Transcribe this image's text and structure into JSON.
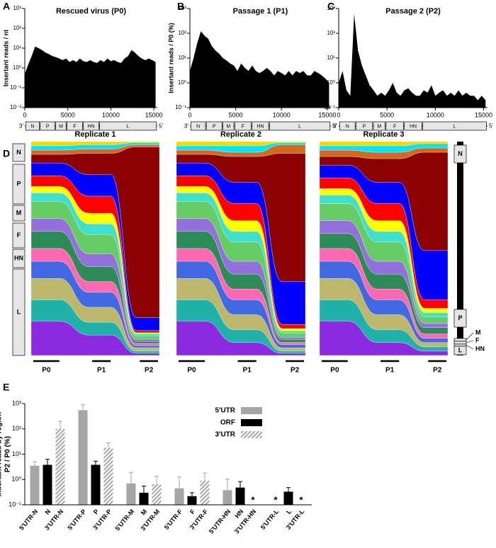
{
  "panels": [
    "A",
    "B",
    "C",
    "D",
    "E"
  ],
  "d_genome": {
    "left": [
      "N",
      "P",
      "M",
      "F",
      "HN",
      "L"
    ],
    "right": [
      "N",
      "P",
      "M",
      "F",
      "HN",
      "L"
    ]
  },
  "chart_data": [
    {
      "type": "area",
      "title": "Rescued virus (P0)",
      "ylabel": "Insertant reads / nt",
      "color": "#000000",
      "log_y": true,
      "x": [
        0,
        400,
        800,
        1200,
        1600,
        2000,
        2400,
        2800,
        3200,
        3600,
        4000,
        4400,
        4800,
        5200,
        5600,
        6000,
        6400,
        6800,
        7200,
        7600,
        8000,
        8400,
        8800,
        9200,
        9600,
        10000,
        10400,
        10800,
        11200,
        11600,
        12000,
        12400,
        12800,
        13200,
        13600,
        14000,
        14400,
        14800,
        15200
      ],
      "values": [
        0.5,
        1.5,
        4,
        12,
        10,
        8,
        6,
        5,
        4,
        3.5,
        3,
        2.5,
        3,
        2,
        2.5,
        2,
        3,
        2.2,
        2,
        2.5,
        2,
        1.8,
        2.5,
        2,
        3,
        2.2,
        2.5,
        2,
        1.8,
        3,
        4,
        8,
        6,
        4,
        3,
        2.5,
        3,
        2.5,
        2
      ],
      "xlim": [
        0,
        15400
      ],
      "xticks": [
        0,
        5000,
        10000,
        15000
      ],
      "ylim": [
        0.01,
        1000
      ],
      "yticks": [
        {
          "value": 0.01,
          "label": "10⁻²"
        },
        {
          "value": 0.1,
          "label": "10⁻¹"
        },
        {
          "value": 1,
          "label": "10⁰"
        },
        {
          "value": 10,
          "label": "10¹"
        },
        {
          "value": 100,
          "label": "10²"
        },
        {
          "value": 1000,
          "label": "10³"
        }
      ],
      "genome_ends": [
        "3'",
        "5'"
      ],
      "genes": [
        {
          "name": "N",
          "start": 100,
          "end": 1700
        },
        {
          "name": "P",
          "start": 1800,
          "end": 3500
        },
        {
          "name": "M",
          "start": 3600,
          "end": 4800
        },
        {
          "name": "F",
          "start": 4900,
          "end": 6700
        },
        {
          "name": "HN",
          "start": 6800,
          "end": 8600
        },
        {
          "name": "L",
          "start": 8700,
          "end": 15300
        }
      ]
    },
    {
      "type": "area",
      "title": "Passage 1 (P1)",
      "ylabel": "Insertant reads / P0 (%)",
      "color": "#000000",
      "log_y": true,
      "x": [
        0,
        400,
        800,
        1200,
        1600,
        2000,
        2400,
        2800,
        3200,
        3600,
        4000,
        4400,
        4800,
        5200,
        5600,
        6000,
        6400,
        6800,
        7200,
        7600,
        8000,
        8400,
        8800,
        9200,
        9600,
        10000,
        10400,
        10800,
        11200,
        11600,
        12000,
        12400,
        12800,
        13200,
        13600,
        14000,
        14400,
        14800,
        15200
      ],
      "values": [
        3,
        10,
        40,
        120,
        80,
        60,
        30,
        20,
        15,
        10,
        8,
        6,
        5,
        3,
        6,
        4,
        3,
        5,
        3,
        2.5,
        3,
        4,
        3,
        2,
        3,
        2.5,
        2,
        3,
        2,
        3,
        2.5,
        3,
        2,
        2,
        3,
        2.5,
        2,
        1.5,
        1
      ],
      "xlim": [
        0,
        15400
      ],
      "xticks": [
        0,
        5000,
        10000,
        15000
      ],
      "ylim": [
        0.1,
        1000
      ],
      "yticks": [
        {
          "value": 0.1,
          "label": "10⁻¹"
        },
        {
          "value": 1,
          "label": "10⁰"
        },
        {
          "value": 10,
          "label": "10¹"
        },
        {
          "value": 100,
          "label": "10²"
        },
        {
          "value": 1000,
          "label": "10³"
        }
      ],
      "genome_ends": [
        "3'",
        "5'"
      ],
      "genes": [
        {
          "name": "N",
          "start": 100,
          "end": 1700
        },
        {
          "name": "P",
          "start": 1800,
          "end": 3500
        },
        {
          "name": "M",
          "start": 3600,
          "end": 4800
        },
        {
          "name": "F",
          "start": 4900,
          "end": 6700
        },
        {
          "name": "HN",
          "start": 6800,
          "end": 8600
        },
        {
          "name": "L",
          "start": 8700,
          "end": 15300
        }
      ]
    },
    {
      "type": "area",
      "title": "Passage 2 (P2)",
      "color": "#000000",
      "log_y": true,
      "x": [
        0,
        400,
        800,
        1200,
        1600,
        2000,
        2400,
        2800,
        3200,
        3600,
        4000,
        4400,
        4800,
        5200,
        5600,
        6000,
        6400,
        6800,
        7200,
        7600,
        8000,
        8400,
        8800,
        9200,
        9600,
        10000,
        10400,
        10800,
        11200,
        11600,
        12000,
        12400,
        12800,
        13200,
        13600,
        14000,
        14400,
        14800,
        15200
      ],
      "values": [
        1,
        3,
        0.5,
        0.3,
        600,
        20,
        5,
        2,
        0.8,
        0.5,
        0.3,
        0.4,
        0.3,
        0.5,
        1,
        0.4,
        0.3,
        0.5,
        0.6,
        0.4,
        0.3,
        0.3,
        0.5,
        0.4,
        0.8,
        0.3,
        0.4,
        0.5,
        0.3,
        0.4,
        0.3,
        0.5,
        0.3,
        0.4,
        0.3,
        0.3,
        0.2,
        0.3,
        0.2
      ],
      "xlim": [
        0,
        15400
      ],
      "xticks": [
        0,
        5000,
        10000,
        15000
      ],
      "ylim": [
        0.1,
        1000
      ],
      "yticks": [
        {
          "value": 0.1,
          "label": "10⁻¹"
        },
        {
          "value": 1,
          "label": "10⁰"
        },
        {
          "value": 10,
          "label": "10¹"
        },
        {
          "value": 100,
          "label": "10²"
        },
        {
          "value": 1000,
          "label": "10³"
        }
      ],
      "genome_ends": [
        "3'",
        "5'"
      ],
      "genes": [
        {
          "name": "N",
          "start": 100,
          "end": 1700
        },
        {
          "name": "P",
          "start": 1800,
          "end": 3500
        },
        {
          "name": "M",
          "start": 3600,
          "end": 4800
        },
        {
          "name": "F",
          "start": 4900,
          "end": 6700
        },
        {
          "name": "HN",
          "start": 6800,
          "end": 8600
        },
        {
          "name": "L",
          "start": 8700,
          "end": 15300
        }
      ]
    },
    {
      "type": "stream",
      "title": "Replicate 1",
      "categories": [
        "P0",
        "P1",
        "P2"
      ],
      "series": [
        {
          "color": "#ffd700",
          "values": [
            2,
            1.5,
            0.5
          ]
        },
        {
          "color": "#00e5ff",
          "values": [
            2,
            2,
            1
          ]
        },
        {
          "color": "#d2691e",
          "values": [
            2,
            2,
            1
          ]
        },
        {
          "color": "#8b0000",
          "values": [
            4,
            10,
            79
          ]
        },
        {
          "color": "#0000ff",
          "values": [
            6,
            10,
            6
          ]
        },
        {
          "color": "#ff0000",
          "values": [
            5,
            8,
            1
          ]
        },
        {
          "color": "#ffff00",
          "values": [
            3,
            5,
            0.5
          ]
        },
        {
          "color": "#40e0d0",
          "values": [
            4,
            5,
            1
          ]
        },
        {
          "color": "#66cc66",
          "values": [
            8,
            9,
            1.5
          ]
        },
        {
          "color": "#9370db",
          "values": [
            6,
            6,
            1
          ]
        },
        {
          "color": "#2e8b57",
          "values": [
            8,
            7,
            1
          ]
        },
        {
          "color": "#ff69b4",
          "values": [
            6,
            5,
            1
          ]
        },
        {
          "color": "#4169e1",
          "values": [
            8,
            7,
            1
          ]
        },
        {
          "color": "#bdb76b",
          "values": [
            10,
            7,
            1.5
          ]
        },
        {
          "color": "#20b2aa",
          "values": [
            10,
            6,
            1
          ]
        },
        {
          "color": "#8a2be2",
          "values": [
            16,
            9.5,
            1
          ]
        }
      ]
    },
    {
      "type": "stream",
      "title": "Replicate 2",
      "categories": [
        "P0",
        "P1",
        "P2"
      ],
      "series": [
        {
          "color": "#ffd700",
          "values": [
            2,
            2,
            0.5
          ]
        },
        {
          "color": "#00e5ff",
          "values": [
            2,
            3,
            1
          ]
        },
        {
          "color": "#d2691e",
          "values": [
            2,
            2,
            4
          ]
        },
        {
          "color": "#8b0000",
          "values": [
            4,
            12,
            60
          ]
        },
        {
          "color": "#0000ff",
          "values": [
            6,
            10,
            20
          ]
        },
        {
          "color": "#ff0000",
          "values": [
            5,
            8,
            2
          ]
        },
        {
          "color": "#ffff00",
          "values": [
            3,
            5,
            1
          ]
        },
        {
          "color": "#40e0d0",
          "values": [
            4,
            5,
            1
          ]
        },
        {
          "color": "#66cc66",
          "values": [
            8,
            9,
            2
          ]
        },
        {
          "color": "#9370db",
          "values": [
            6,
            6,
            1
          ]
        },
        {
          "color": "#2e8b57",
          "values": [
            8,
            7,
            1.5
          ]
        },
        {
          "color": "#ff69b4",
          "values": [
            6,
            5,
            1
          ]
        },
        {
          "color": "#4169e1",
          "values": [
            8,
            7,
            1.5
          ]
        },
        {
          "color": "#bdb76b",
          "values": [
            10,
            7,
            1.5
          ]
        },
        {
          "color": "#20b2aa",
          "values": [
            10,
            6,
            1
          ]
        },
        {
          "color": "#8a2be2",
          "values": [
            16,
            6,
            1
          ]
        }
      ]
    },
    {
      "type": "stream",
      "title": "Replicate 3",
      "categories": [
        "P0",
        "P1",
        "P2"
      ],
      "series": [
        {
          "color": "#ffd700",
          "values": [
            2,
            2,
            1
          ]
        },
        {
          "color": "#00e5ff",
          "values": [
            2,
            3,
            2
          ]
        },
        {
          "color": "#d2691e",
          "values": [
            3,
            3,
            2
          ]
        },
        {
          "color": "#8b0000",
          "values": [
            4,
            11,
            46
          ]
        },
        {
          "color": "#0000ff",
          "values": [
            6,
            10,
            23
          ]
        },
        {
          "color": "#ff0000",
          "values": [
            5,
            8,
            4
          ]
        },
        {
          "color": "#ffff00",
          "values": [
            3,
            5,
            2
          ]
        },
        {
          "color": "#40e0d0",
          "values": [
            4,
            5,
            2
          ]
        },
        {
          "color": "#66cc66",
          "values": [
            8,
            9,
            3
          ]
        },
        {
          "color": "#9370db",
          "values": [
            6,
            6,
            2
          ]
        },
        {
          "color": "#2e8b57",
          "values": [
            7,
            7,
            3
          ]
        },
        {
          "color": "#ff69b4",
          "values": [
            6,
            5,
            2
          ]
        },
        {
          "color": "#4169e1",
          "values": [
            8,
            7,
            2
          ]
        },
        {
          "color": "#bdb76b",
          "values": [
            10,
            7,
            2
          ]
        },
        {
          "color": "#20b2aa",
          "values": [
            10,
            6,
            2
          ]
        },
        {
          "color": "#8a2be2",
          "values": [
            16,
            6,
            2
          ]
        }
      ]
    },
    {
      "type": "bar",
      "ylabel": [
        "Insertant reads by region",
        "P2 / P0 (%)"
      ],
      "log_y": true,
      "categories": [
        "5'UTR-N",
        "N",
        "3'UTR-N",
        "5'UTR-P",
        "P",
        "3'UTR-P",
        "5'UTR-M",
        "M",
        "3'UTR-M",
        "5'UTR-F",
        "F",
        "3'UTR-F",
        "5'UTR-HN",
        "HN",
        "3'UTR-HN",
        "5'UTR-L",
        "L",
        "3'UTR-L"
      ],
      "ylim": [
        0.1,
        1000
      ],
      "yticks": [
        {
          "value": 0.1,
          "label": "10⁻¹"
        },
        {
          "value": 1,
          "label": "10⁰"
        },
        {
          "value": 10,
          "label": "10¹"
        },
        {
          "value": 100,
          "label": "10²"
        },
        {
          "value": 1000,
          "label": "10³"
        }
      ],
      "series": [
        {
          "name": "5'UTR",
          "color": "#a6a6a6",
          "values": [
            3.5,
            null,
            null,
            550,
            null,
            null,
            0.7,
            null,
            null,
            0.45,
            null,
            null,
            0.38,
            null,
            null,
            null,
            null,
            null
          ],
          "errors": [
            1.5,
            null,
            null,
            350,
            null,
            null,
            1.2,
            null,
            null,
            0.8,
            null,
            null,
            0.65,
            null,
            null,
            null,
            null,
            null
          ]
        },
        {
          "name": "ORF",
          "color": "#000000",
          "values": [
            null,
            3.8,
            null,
            null,
            3.8,
            null,
            null,
            0.3,
            null,
            null,
            0.22,
            null,
            null,
            0.48,
            null,
            null,
            0.33,
            null
          ],
          "errors": [
            null,
            2.5,
            null,
            null,
            1.5,
            null,
            null,
            0.25,
            null,
            null,
            0.08,
            null,
            null,
            0.35,
            null,
            null,
            0.15,
            null
          ]
        },
        {
          "name": "3'UTR",
          "color": "#a6a6a6",
          "pattern": "hatch",
          "values": [
            null,
            null,
            100,
            null,
            null,
            18,
            null,
            null,
            0.65,
            null,
            null,
            0.9,
            null,
            null,
            null,
            null,
            null,
            null
          ],
          "errors": [
            null,
            null,
            100,
            null,
            null,
            10,
            null,
            null,
            0.7,
            null,
            null,
            0.9,
            null,
            null,
            null,
            null,
            null,
            null
          ]
        }
      ],
      "annotations": [
        {
          "category": "3'UTR-HN",
          "text": "*"
        },
        {
          "category": "5'UTR-L",
          "text": "*"
        },
        {
          "category": "3'UTR-L",
          "text": "*"
        }
      ]
    }
  ]
}
